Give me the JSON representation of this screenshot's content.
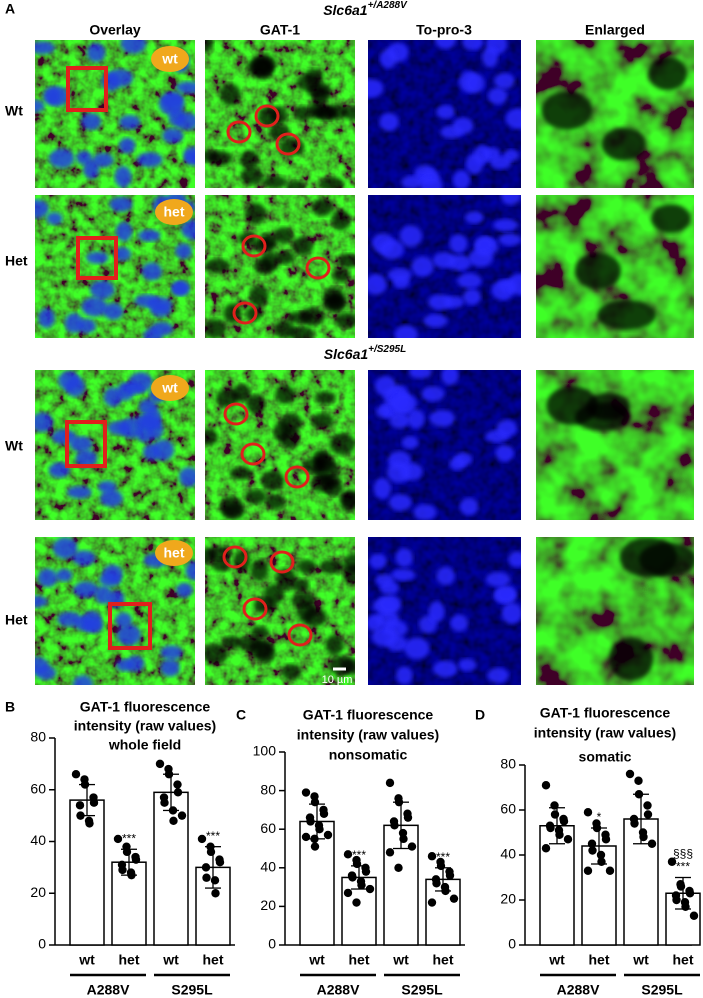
{
  "figure": {
    "panel_a": "A",
    "panel_b": "B",
    "panel_c": "C",
    "panel_d": "D",
    "section_1": {
      "gene": "Slc6a1",
      "genotype": "+/A288V"
    },
    "section_2": {
      "gene": "Slc6a1",
      "genotype": "+/S295L"
    },
    "column_headers": [
      "Overlay",
      "GAT-1",
      "To-pro-3",
      "Enlarged"
    ],
    "row_labels": [
      "Wt",
      "Het",
      "Wt",
      "Het"
    ],
    "badges": [
      "wt",
      "het",
      "wt",
      "het"
    ],
    "scale_bar": "10 µm"
  },
  "chart_data": [
    {
      "type": "bar",
      "title": [
        "GAT-1 fluorescence",
        "intensity (raw values)",
        "whole field"
      ],
      "categories": [
        "wt",
        "het",
        "wt",
        "het"
      ],
      "groups": [
        "A288V",
        "S295L"
      ],
      "values": [
        56,
        32,
        59,
        30
      ],
      "errors": [
        6,
        5,
        7,
        8
      ],
      "points": [
        [
          66,
          64,
          62,
          57,
          55,
          54,
          50,
          48,
          47
        ],
        [
          41,
          38,
          36,
          34,
          33,
          31,
          29,
          28,
          27
        ],
        [
          70,
          68,
          66,
          62,
          59,
          57,
          55,
          52,
          48,
          50
        ],
        [
          41,
          38,
          36,
          33,
          32,
          30,
          26,
          25,
          20
        ]
      ],
      "annotations": [
        [],
        [
          "***"
        ],
        [],
        [
          "***"
        ]
      ],
      "color": "#ffffff",
      "ylim": [
        0,
        80
      ],
      "yticks": [
        0,
        20,
        40,
        60,
        80
      ]
    },
    {
      "type": "bar",
      "title": [
        "GAT-1 fluorescence",
        "intensity (raw values)",
        "nonsomatic"
      ],
      "categories": [
        "wt",
        "het",
        "wt",
        "het"
      ],
      "groups": [
        "A288V",
        "S295L"
      ],
      "values": [
        64,
        35,
        62,
        34
      ],
      "errors": [
        9,
        6,
        12,
        6
      ],
      "points": [
        [
          79,
          77,
          74,
          70,
          68,
          66,
          64,
          62,
          60,
          57,
          56,
          55,
          51
        ],
        [
          47,
          44,
          42,
          40,
          38,
          36,
          35,
          33,
          31,
          29,
          27,
          22
        ],
        [
          84,
          76,
          74,
          68,
          66,
          64,
          62,
          58,
          55,
          51,
          48,
          40
        ],
        [
          46,
          43,
          41,
          38,
          36,
          34,
          32,
          30,
          28,
          24,
          22
        ]
      ],
      "annotations": [
        [],
        [
          "***"
        ],
        [],
        [
          "***"
        ]
      ],
      "color": "#ffffff",
      "ylim": [
        0,
        100
      ],
      "yticks": [
        0,
        20,
        40,
        60,
        80,
        100
      ]
    },
    {
      "type": "bar",
      "title": [
        "GAT-1 fluorescence",
        "intensity (raw values)",
        "somatic"
      ],
      "categories": [
        "wt",
        "het",
        "wt",
        "het"
      ],
      "groups": [
        "A288V",
        "S295L"
      ],
      "values": [
        53,
        44,
        56,
        23
      ],
      "errors": [
        8,
        8,
        11,
        7
      ],
      "points": [
        [
          71,
          62,
          58,
          56,
          55,
          53,
          52,
          51,
          49,
          47,
          43
        ],
        [
          59,
          54,
          52,
          49,
          47,
          45,
          42,
          40,
          37,
          33,
          33
        ],
        [
          76,
          73,
          67,
          62,
          58,
          56,
          54,
          50,
          48,
          45
        ],
        [
          37,
          27,
          26,
          24,
          23,
          22,
          20,
          19,
          17,
          13
        ]
      ],
      "annotations": [
        [],
        [
          "*"
        ],
        [],
        [
          "§§§",
          "***"
        ]
      ],
      "color": "#ffffff",
      "ylim": [
        0,
        80
      ],
      "yticks": [
        0,
        20,
        40,
        60,
        80
      ]
    }
  ]
}
